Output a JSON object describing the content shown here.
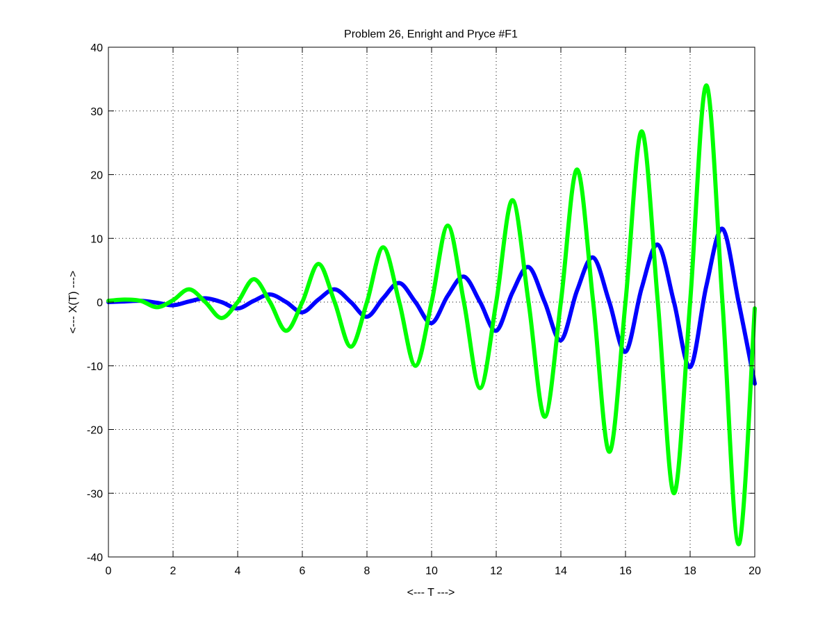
{
  "chart_data": {
    "type": "line",
    "title": "Problem 26, Enright and Pryce #F1",
    "xlabel": "<--- T --->",
    "ylabel": "<--- X(T) --->",
    "xlim": [
      0,
      20
    ],
    "ylim": [
      -40,
      40
    ],
    "xticks": [
      0,
      2,
      4,
      6,
      8,
      10,
      12,
      14,
      16,
      18,
      20
    ],
    "yticks": [
      -40,
      -30,
      -20,
      -10,
      0,
      10,
      20,
      30,
      40
    ],
    "xtick_labels": [
      "0",
      "2",
      "4",
      "6",
      "8",
      "10",
      "12",
      "14",
      "16",
      "18",
      "20"
    ],
    "ytick_labels": [
      "-40",
      "-30",
      "-20",
      "-10",
      "0",
      "10",
      "20",
      "30",
      "40"
    ],
    "grid": true,
    "legend": "none",
    "series": [
      {
        "color": "#0000ff",
        "x": [
          0,
          0.5,
          1.0,
          1.5,
          2.0,
          2.5,
          3.0,
          3.5,
          4.0,
          4.5,
          5.0,
          5.5,
          6.0,
          6.5,
          7.0,
          7.5,
          8.0,
          8.5,
          9.0,
          9.5,
          10.0,
          10.5,
          11.0,
          11.5,
          12.0,
          12.5,
          13.0,
          13.5,
          14.0,
          14.5,
          15.0,
          15.5,
          16.0,
          16.5,
          17.0,
          17.5,
          18.0,
          18.5,
          19.0,
          19.5,
          20.0
        ],
        "y": [
          0.0,
          0.1,
          0.2,
          -0.1,
          -0.5,
          0.1,
          0.6,
          0.0,
          -1.0,
          0.2,
          1.2,
          0.0,
          -1.6,
          0.4,
          2.0,
          0.0,
          -2.3,
          0.6,
          3.0,
          0.0,
          -3.3,
          1.0,
          4.0,
          0.0,
          -4.5,
          1.5,
          5.5,
          0.0,
          -6.0,
          1.8,
          7.0,
          0.0,
          -7.8,
          2.2,
          9.0,
          0.0,
          -10.2,
          2.5,
          11.5,
          0.0,
          -12.8
        ]
      },
      {
        "color": "#00ff00",
        "x": [
          0,
          0.5,
          1.0,
          1.5,
          2.0,
          2.5,
          3.0,
          3.5,
          4.0,
          4.5,
          5.0,
          5.5,
          6.0,
          6.5,
          7.0,
          7.5,
          8.0,
          8.5,
          9.0,
          9.5,
          10.0,
          10.5,
          11.0,
          11.5,
          12.0,
          12.5,
          13.0,
          13.5,
          14.0,
          14.5,
          15.0,
          15.5,
          16.0,
          16.5,
          17.0,
          17.5,
          18.0,
          18.5,
          19.0,
          19.5,
          20.0
        ],
        "y": [
          0.2,
          0.4,
          0.2,
          -0.8,
          0.3,
          2.0,
          0.0,
          -2.5,
          0.0,
          3.6,
          0.0,
          -4.5,
          0.0,
          6.0,
          0.0,
          -7.0,
          0.0,
          8.6,
          0.0,
          -10.0,
          0.0,
          12.0,
          0.0,
          -13.5,
          0.0,
          16.0,
          0.0,
          -18.0,
          0.0,
          20.8,
          0.0,
          -23.5,
          0.0,
          26.8,
          0.0,
          -30.0,
          0.0,
          34.0,
          0.0,
          -38.0,
          -1.0
        ]
      }
    ]
  }
}
